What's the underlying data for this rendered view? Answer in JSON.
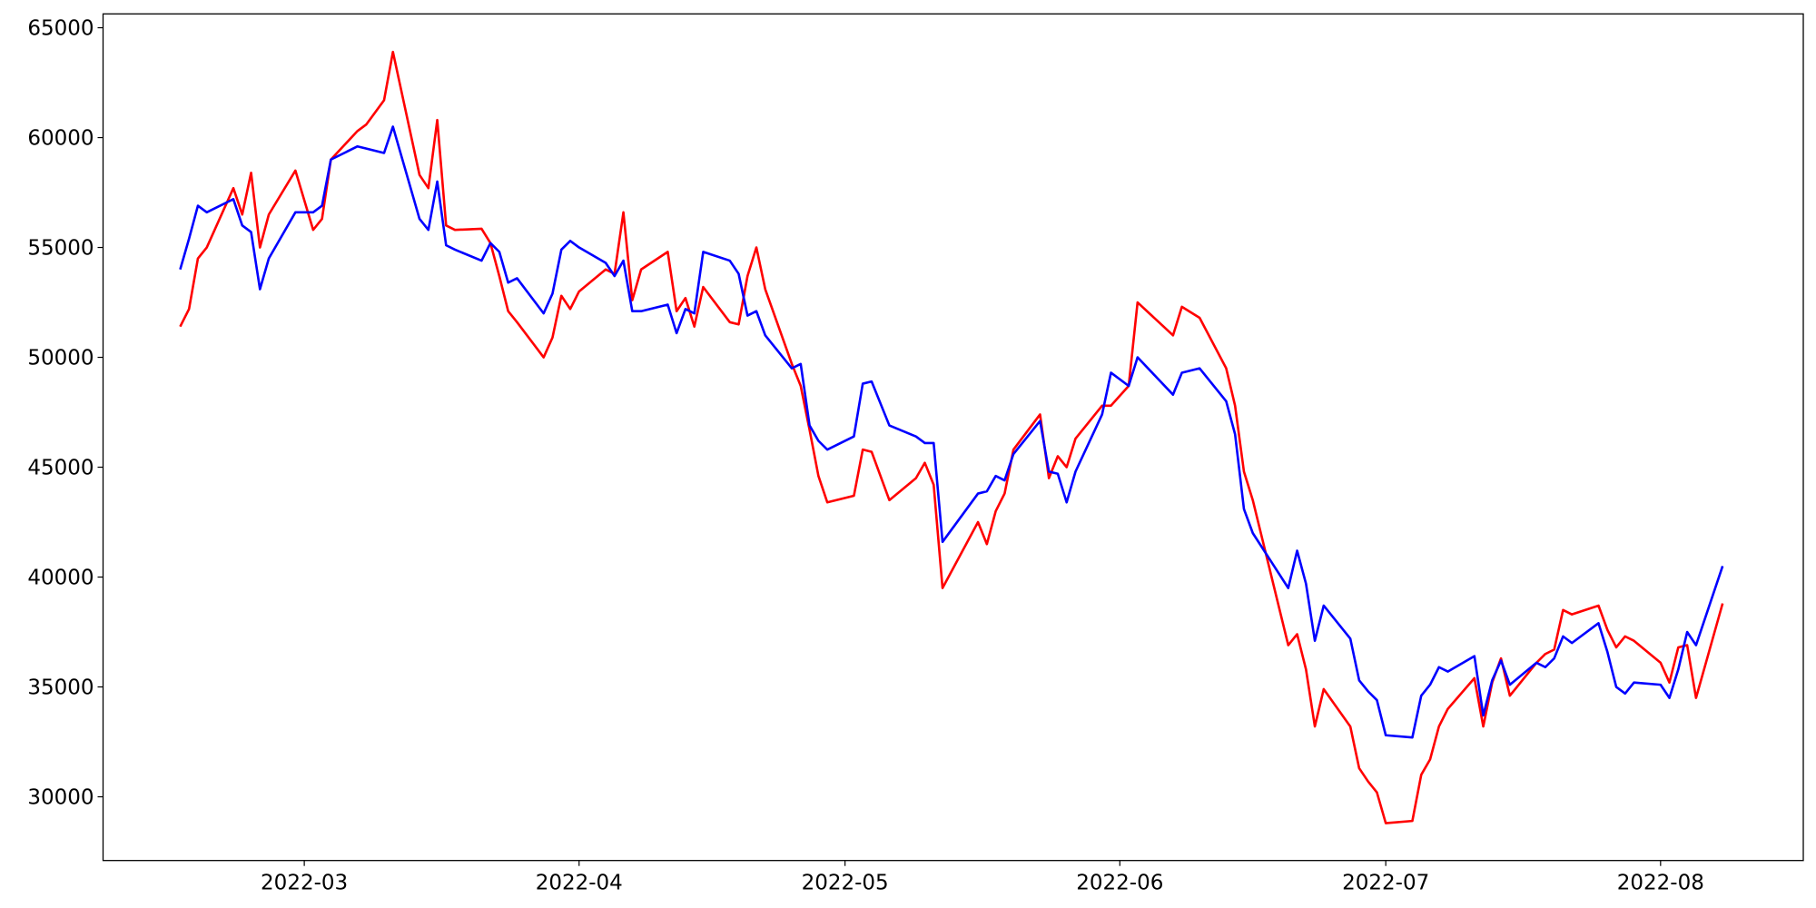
{
  "chart_data": {
    "type": "line",
    "x": [
      45,
      46,
      47,
      48,
      51,
      52,
      53,
      54,
      55,
      58,
      60,
      61,
      62,
      65,
      66,
      68,
      69,
      72,
      73,
      74,
      75,
      76,
      79,
      80,
      81,
      82,
      83,
      86,
      87,
      88,
      89,
      90,
      93,
      94,
      95,
      96,
      97,
      100,
      101,
      102,
      103,
      104,
      107,
      108,
      109,
      110,
      111,
      114,
      115,
      116,
      117,
      118,
      121,
      122,
      123,
      125,
      128,
      129,
      130,
      131,
      135,
      136,
      137,
      138,
      139,
      142,
      143,
      144,
      145,
      146,
      149,
      150,
      152,
      153,
      157,
      158,
      160,
      163,
      164,
      165,
      166,
      170,
      171,
      172,
      173,
      174,
      177,
      178,
      179,
      180,
      181,
      184,
      185,
      186,
      187,
      188,
      191,
      192,
      193,
      194,
      195,
      198,
      199,
      200,
      201,
      202,
      205,
      206,
      207,
      208,
      209,
      212,
      213,
      214,
      215,
      216,
      219
    ],
    "series": [
      {
        "color": "#ff0000",
        "values": [
          51400,
          52200,
          54500,
          55000,
          57700,
          56500,
          58400,
          55000,
          56500,
          58500,
          55800,
          56300,
          59000,
          60300,
          60600,
          61700,
          63900,
          58300,
          57700,
          60800,
          56000,
          55800,
          55850,
          55200,
          53700,
          52100,
          51600,
          50000,
          50900,
          52800,
          52200,
          53000,
          54000,
          53800,
          56600,
          52600,
          54000,
          54800,
          52100,
          52700,
          51400,
          53200,
          51600,
          51500,
          53700,
          55000,
          53100,
          49700,
          48700,
          46700,
          44600,
          43400,
          43700,
          45800,
          45700,
          43500,
          44500,
          45200,
          44200,
          39500,
          42500,
          41500,
          43000,
          43800,
          45800,
          47400,
          44500,
          45500,
          45000,
          46300,
          47800,
          47800,
          48700,
          52500,
          51000,
          52300,
          51800,
          49500,
          47800,
          44800,
          43500,
          36900,
          37400,
          35800,
          33200,
          34900,
          33200,
          31300,
          30700,
          30200,
          28800,
          28900,
          31000,
          31700,
          33200,
          34000,
          35400,
          33200,
          35200,
          36300,
          34600,
          36100,
          36500,
          36700,
          38500,
          38300,
          38700,
          37600,
          36800,
          37300,
          37100,
          36100,
          35200,
          36800,
          36900,
          34500,
          38800
        ]
      },
      {
        "color": "#0000ff",
        "values": [
          54000,
          55400,
          56900,
          56600,
          57200,
          56000,
          55700,
          53100,
          54500,
          56600,
          56600,
          56900,
          59000,
          59600,
          59500,
          59300,
          60500,
          56300,
          55800,
          58000,
          55100,
          54900,
          54400,
          55200,
          54800,
          53400,
          53600,
          52000,
          52900,
          54900,
          55300,
          55000,
          54300,
          53700,
          54400,
          52100,
          52100,
          52400,
          51100,
          52200,
          52000,
          54800,
          54400,
          53800,
          51900,
          52100,
          51000,
          49500,
          49700,
          46900,
          46200,
          45800,
          46400,
          48800,
          48900,
          46900,
          46400,
          46100,
          46100,
          41600,
          43800,
          43900,
          44600,
          44400,
          45600,
          47100,
          44800,
          44700,
          43400,
          44800,
          47400,
          49300,
          48700,
          50000,
          48300,
          49300,
          49500,
          48000,
          46500,
          43100,
          42000,
          39500,
          41200,
          39700,
          37100,
          38700,
          37200,
          35300,
          34800,
          34400,
          32800,
          32700,
          34600,
          35100,
          35900,
          35700,
          36400,
          33700,
          35300,
          36200,
          35100,
          36100,
          35900,
          36300,
          37300,
          37000,
          37900,
          36600,
          35000,
          34700,
          35200,
          35100,
          34500,
          35800,
          37500,
          36900,
          40500
        ]
      }
    ],
    "xlim": [
      36.3,
      228.1
    ],
    "xticks": [
      {
        "value": 59,
        "label": "2022-03"
      },
      {
        "value": 90,
        "label": "2022-04"
      },
      {
        "value": 120,
        "label": "2022-05"
      },
      {
        "value": 151,
        "label": "2022-06"
      },
      {
        "value": 181,
        "label": "2022-07"
      },
      {
        "value": 212,
        "label": "2022-08"
      }
    ],
    "ylim": [
      27100,
      65630
    ],
    "yticks": [
      30000,
      35000,
      40000,
      45000,
      50000,
      55000,
      60000,
      65000
    ],
    "grid": false
  }
}
